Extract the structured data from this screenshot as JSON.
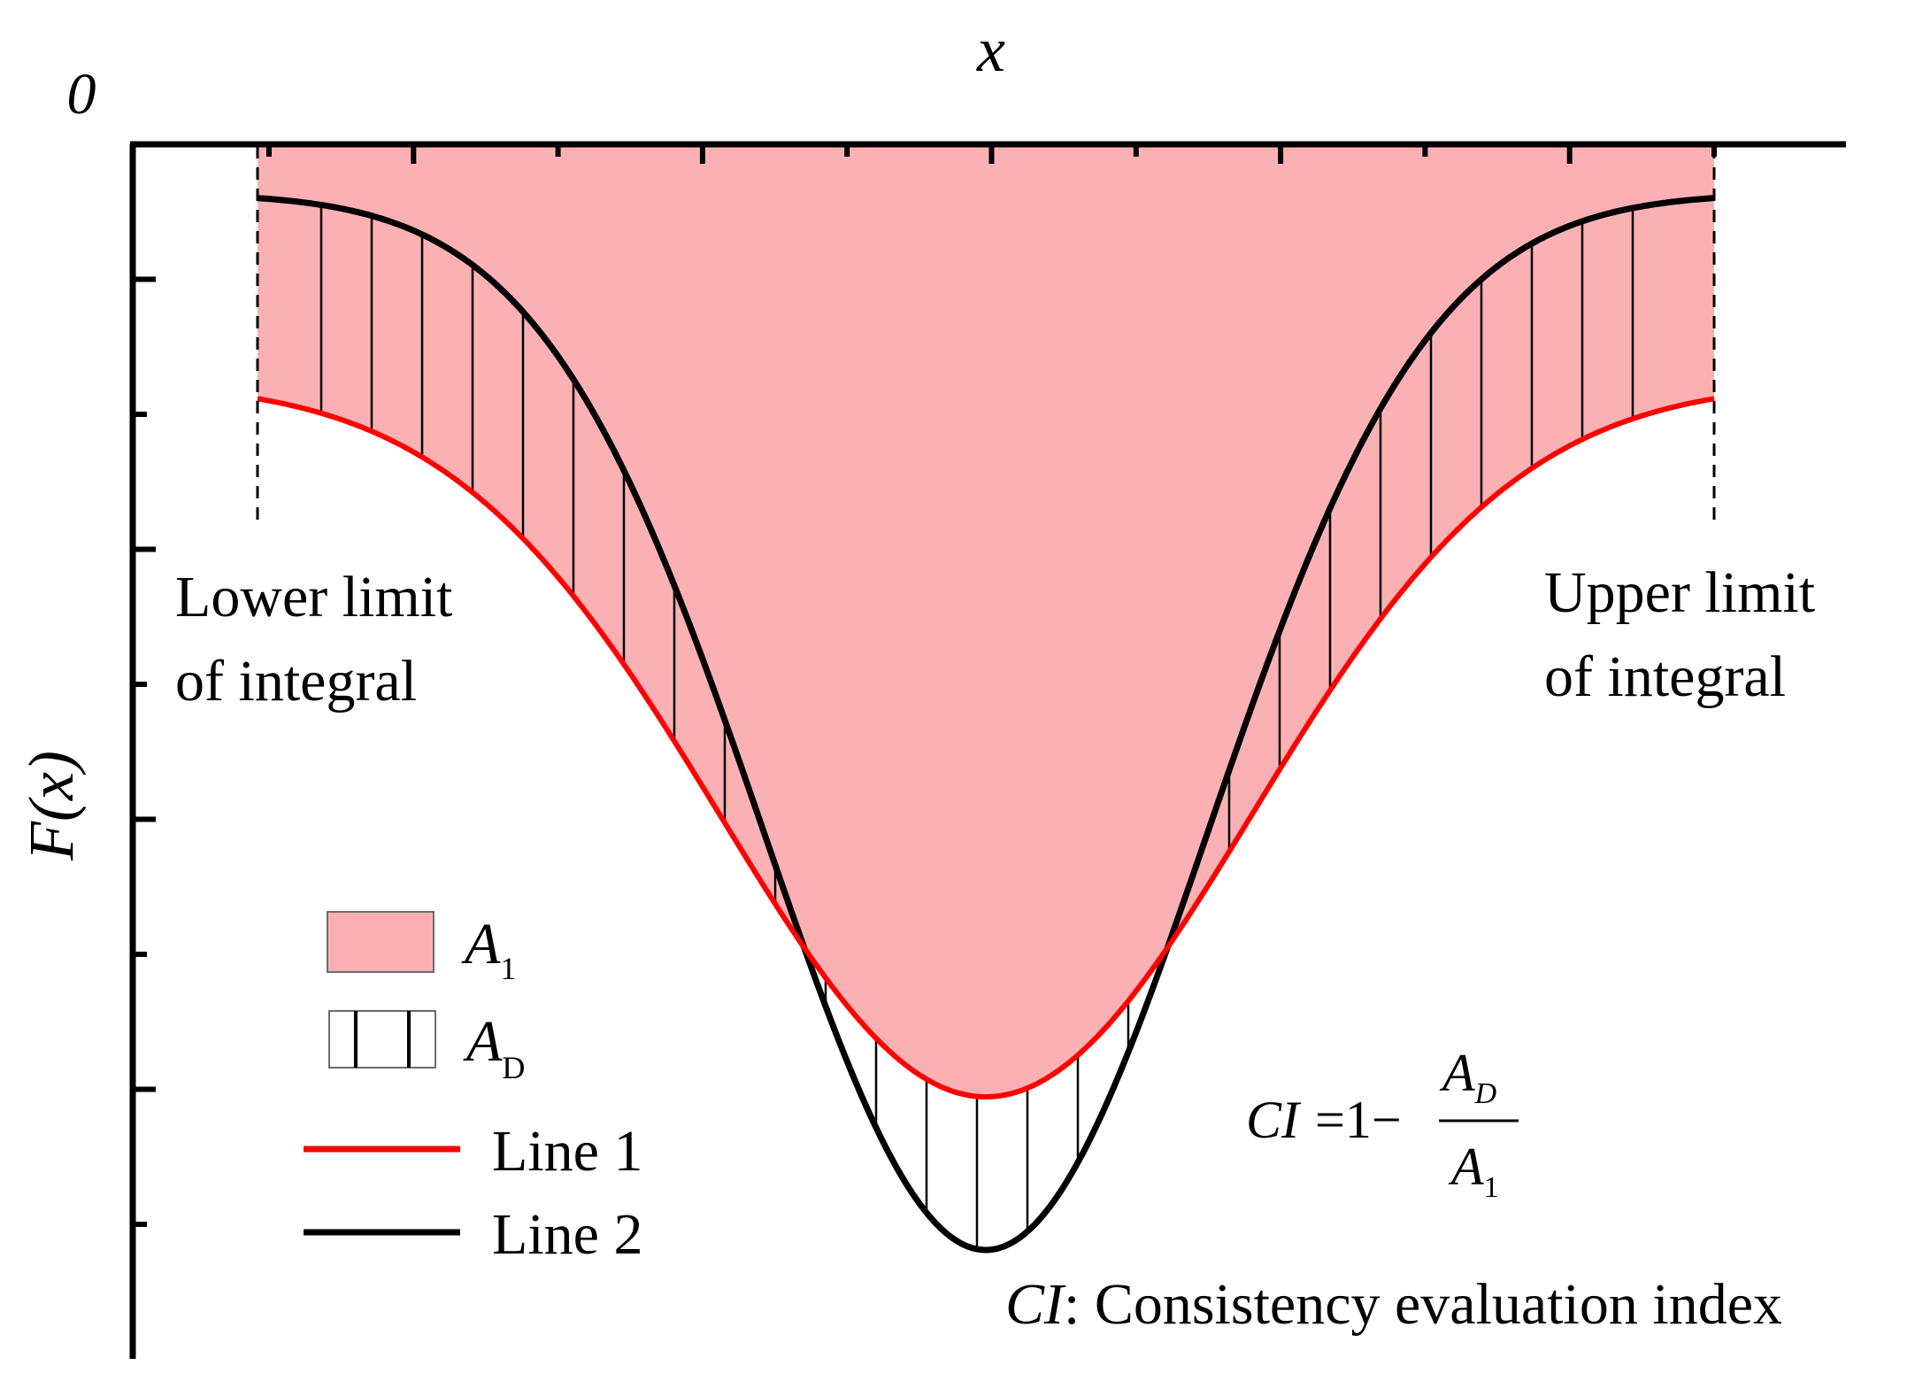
{
  "axes": {
    "x_label": "x",
    "y_label": "F(x)",
    "origin_label": "0"
  },
  "annotations": {
    "lower_limit": [
      "Lower limit",
      "of integral"
    ],
    "upper_limit": [
      "Upper limit",
      "of integral"
    ]
  },
  "legend": {
    "area_a1": {
      "symbol": "A",
      "sub": "1"
    },
    "area_ad": {
      "symbol": "A",
      "sub": "D"
    },
    "line1": "Line 1",
    "line2": "Line 2"
  },
  "formula": {
    "lhs": "CI",
    "eq": "=1−",
    "num_symbol": "A",
    "num_sub": "D",
    "den_symbol": "A",
    "den_sub": "1"
  },
  "definition": {
    "abbr": "CI",
    "text": ": Consistency evaluation index"
  },
  "colors": {
    "fill_a1": "#fbb1b3",
    "line1": "#ff0000",
    "line2": "#000000",
    "axis": "#000000"
  }
}
